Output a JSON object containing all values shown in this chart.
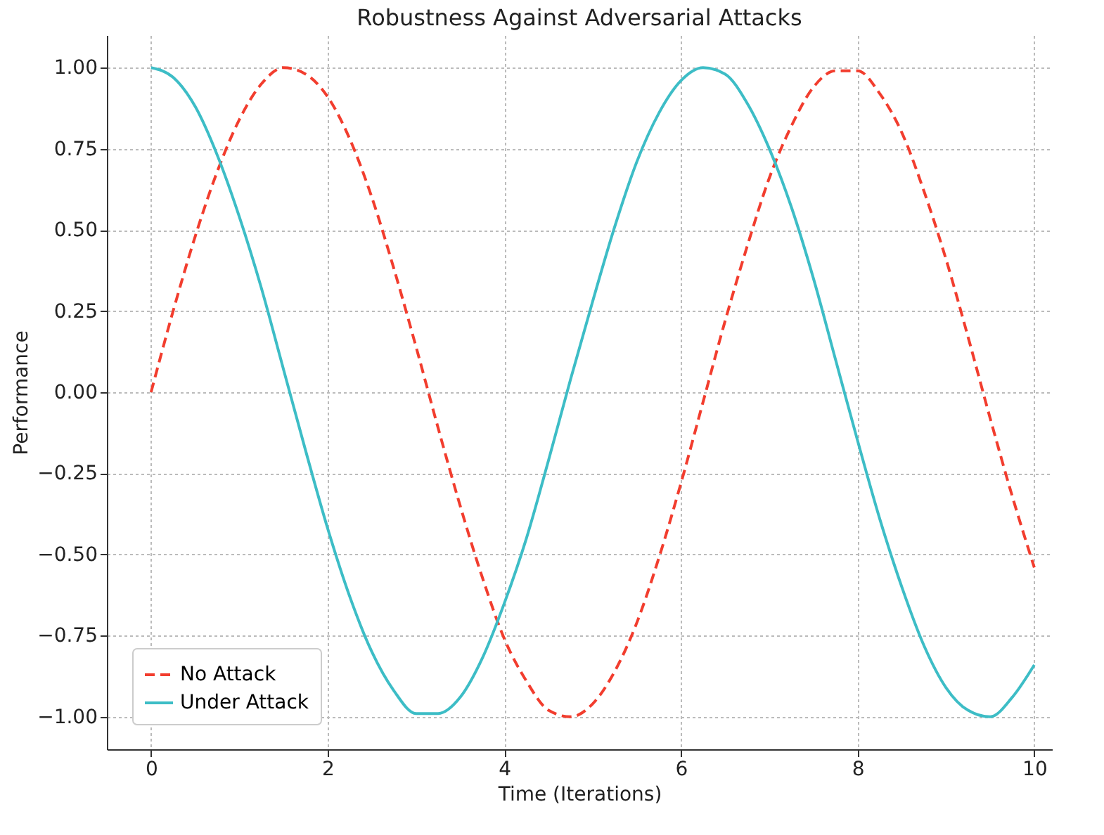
{
  "chart_data": {
    "type": "line",
    "title": "Robustness Against Adversarial Attacks",
    "xlabel": "Time (Iterations)",
    "ylabel": "Performance",
    "x": [
      0,
      0.25,
      0.5,
      0.75,
      1,
      1.25,
      1.5,
      1.75,
      2,
      2.25,
      2.5,
      2.75,
      3,
      3.25,
      3.5,
      3.75,
      4,
      4.25,
      4.5,
      4.75,
      5,
      5.25,
      5.5,
      5.75,
      6,
      6.25,
      6.5,
      6.75,
      7,
      7.25,
      7.5,
      7.75,
      8,
      8.25,
      8.5,
      8.75,
      9,
      9.25,
      9.5,
      9.75,
      10
    ],
    "series": [
      {
        "name": "No Attack",
        "color": "#f23d2e",
        "line_style": "dashed",
        "values": [
          0,
          0.25,
          0.48,
          0.68,
          0.84,
          0.95,
          1.0,
          0.98,
          0.91,
          0.78,
          0.6,
          0.38,
          0.14,
          -0.11,
          -0.35,
          -0.57,
          -0.76,
          -0.89,
          -0.98,
          -1.0,
          -0.96,
          -0.86,
          -0.71,
          -0.51,
          -0.28,
          -0.03,
          0.22,
          0.45,
          0.66,
          0.82,
          0.94,
          0.99,
          0.99,
          0.92,
          0.8,
          0.62,
          0.41,
          0.17,
          -0.08,
          -0.32,
          -0.54
        ]
      },
      {
        "name": "Under Attack",
        "color": "#3dbdc6",
        "line_style": "solid",
        "values": [
          1,
          0.97,
          0.88,
          0.73,
          0.54,
          0.32,
          0.07,
          -0.18,
          -0.42,
          -0.63,
          -0.8,
          -0.92,
          -0.99,
          -0.99,
          -0.94,
          -0.82,
          -0.65,
          -0.45,
          -0.21,
          0.04,
          0.28,
          0.51,
          0.71,
          0.86,
          0.96,
          1.0,
          0.98,
          0.89,
          0.75,
          0.57,
          0.35,
          0.1,
          -0.15,
          -0.39,
          -0.6,
          -0.78,
          -0.91,
          -0.98,
          -1.0,
          -0.94,
          -0.84
        ]
      }
    ],
    "xlim": [
      -0.5,
      10.2
    ],
    "xticks": [
      0,
      2,
      4,
      6,
      8,
      10
    ],
    "ylim": [
      -1.1,
      1.1
    ],
    "yticks": [
      {
        "value": -1,
        "label": "−1.00"
      },
      {
        "value": -0.75,
        "label": "−0.75"
      },
      {
        "value": -0.5,
        "label": "−0.50"
      },
      {
        "value": -0.25,
        "label": "−0.25"
      },
      {
        "value": 0,
        "label": "0.00"
      },
      {
        "value": 0.25,
        "label": "0.25"
      },
      {
        "value": 0.5,
        "label": "0.50"
      },
      {
        "value": 0.75,
        "label": "0.75"
      },
      {
        "value": 1,
        "label": "1.00"
      }
    ],
    "grid": true,
    "legend": "bottom left",
    "marker": "none"
  }
}
